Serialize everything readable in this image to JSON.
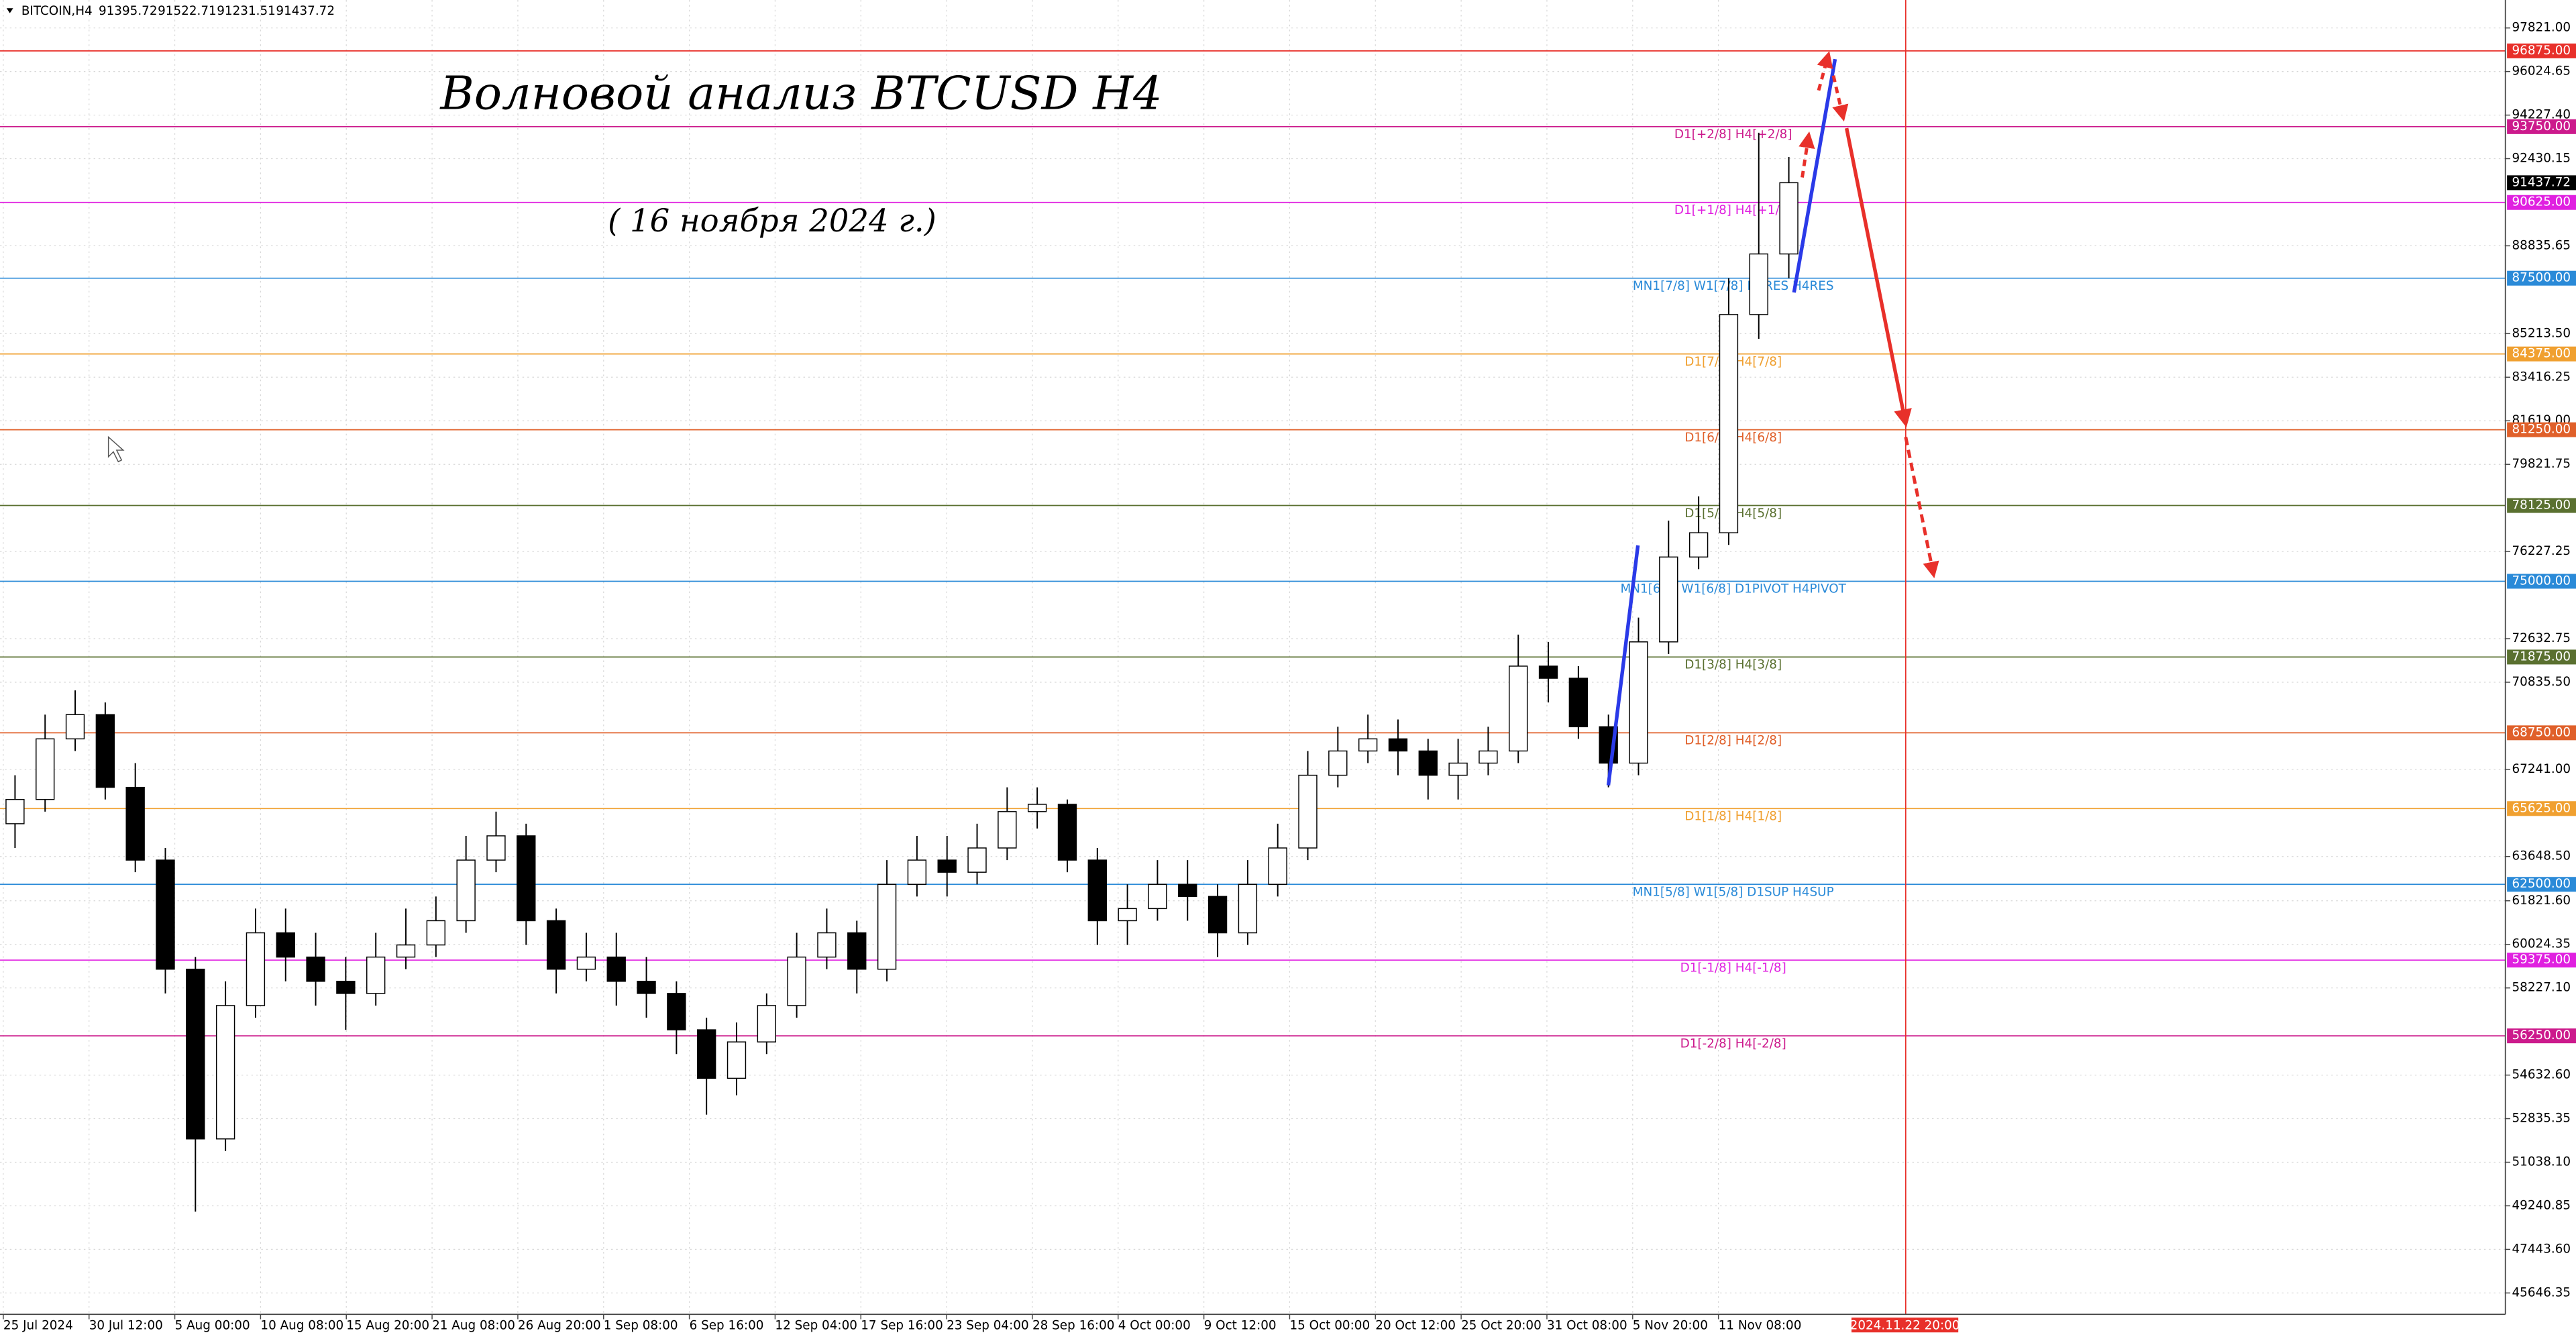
{
  "chart_data": {
    "type": "candlestick",
    "symbol": "BITCOIN,H4",
    "ohlc": [
      91395.72,
      91522.71,
      91231.51,
      91437.72
    ],
    "title": "Волновой анализ BTCUSD H4",
    "subtitle": "( 16 ноября 2024 г.)",
    "open": [
      65000,
      66000,
      68500,
      69500,
      66500,
      63500,
      59000,
      52000,
      57500,
      60500,
      59500,
      58500,
      58000,
      59500,
      60000,
      61000,
      63500,
      64500,
      61000,
      59000,
      59500,
      58500,
      58000,
      56500,
      54500,
      56000,
      57500,
      59500,
      60500,
      59000,
      62500,
      63500,
      63000,
      64000,
      65500,
      65800,
      63500,
      61000,
      61500,
      62500,
      62000,
      60500,
      62500,
      64000,
      67000,
      68000,
      68500,
      68000,
      67000,
      67500,
      68000,
      71500,
      71000,
      69000,
      67500,
      72500,
      76000,
      77000,
      86000,
      88500
    ],
    "high": [
      67000,
      69500,
      70500,
      70000,
      67500,
      64000,
      59500,
      58500,
      61500,
      61500,
      60500,
      59500,
      60500,
      61500,
      62000,
      64500,
      65500,
      65000,
      61500,
      60500,
      60500,
      59500,
      58500,
      57000,
      56800,
      58000,
      60500,
      61500,
      61000,
      63500,
      64500,
      64500,
      65000,
      66500,
      66500,
      66000,
      64000,
      62500,
      63500,
      63500,
      62500,
      63500,
      65000,
      68000,
      69000,
      69500,
      69300,
      68500,
      68500,
      69000,
      72800,
      72500,
      71500,
      69500,
      73500,
      77500,
      78500,
      87500,
      93500,
      92500
    ],
    "low": [
      64000,
      65500,
      68000,
      66000,
      63000,
      58000,
      49000,
      51500,
      57000,
      58500,
      57500,
      56500,
      57500,
      59000,
      59500,
      60500,
      63000,
      60000,
      58000,
      58500,
      57500,
      57000,
      55500,
      53000,
      53800,
      55500,
      57000,
      59000,
      58000,
      58500,
      62000,
      62000,
      62500,
      63500,
      64800,
      63000,
      60000,
      60000,
      61000,
      61000,
      59500,
      60000,
      62000,
      63500,
      66500,
      67500,
      67000,
      66000,
      66000,
      67000,
      67500,
      70000,
      68500,
      66500,
      67000,
      72000,
      75500,
      76500,
      85000,
      87500
    ],
    "close": [
      66000,
      68500,
      69500,
      66500,
      63500,
      59000,
      52000,
      57500,
      60500,
      59500,
      58500,
      58000,
      59500,
      60000,
      61000,
      63500,
      64500,
      61000,
      59000,
      59500,
      58500,
      58000,
      56500,
      54500,
      56000,
      57500,
      59500,
      60500,
      59000,
      62500,
      63500,
      63000,
      64000,
      65500,
      65800,
      63500,
      61000,
      61500,
      62500,
      62000,
      60500,
      62500,
      64000,
      67000,
      68000,
      68500,
      68000,
      67000,
      67500,
      68000,
      71500,
      71000,
      69000,
      67500,
      72500,
      76000,
      77000,
      86000,
      88500,
      91437.72
    ],
    "x_labels": [
      "25 Jul 2024",
      "30 Jul 12:00",
      "5 Aug 00:00",
      "10 Aug 08:00",
      "15 Aug 20:00",
      "21 Aug 08:00",
      "26 Aug 20:00",
      "1 Sep 08:00",
      "6 Sep 16:00",
      "12 Sep 04:00",
      "17 Sep 16:00",
      "23 Sep 04:00",
      "28 Sep 16:00",
      "4 Oct 00:00",
      "9 Oct 12:00",
      "15 Oct 00:00",
      "20 Oct 12:00",
      "25 Oct 20:00",
      "31 Oct 08:00",
      "5 Nov 20:00",
      "11 Nov 08:00"
    ],
    "marker_label": "2024.11.22 20:00",
    "ylim": [
      44765,
      98973
    ],
    "yticks": [
      {
        "value": 97821.0,
        "label": "97821.00"
      },
      {
        "value": 96024.65,
        "label": "96024.65"
      },
      {
        "value": 94227.4,
        "label": "94227.40"
      },
      {
        "value": 92430.15,
        "label": "92430.15"
      },
      {
        "value": 88835.65,
        "label": "88835.65"
      },
      {
        "value": 85213.5,
        "label": "85213.50"
      },
      {
        "value": 83416.25,
        "label": "83416.25"
      },
      {
        "value": 81619.0,
        "label": "81619.00"
      },
      {
        "value": 79821.75,
        "label": "79821.75"
      },
      {
        "value": 76227.25,
        "label": "76227.25"
      },
      {
        "value": 72632.75,
        "label": "72632.75"
      },
      {
        "value": 70835.5,
        "label": "70835.50"
      },
      {
        "value": 67241.0,
        "label": "67241.00"
      },
      {
        "value": 63648.5,
        "label": "63648.50"
      },
      {
        "value": 61821.6,
        "label": "61821.60"
      },
      {
        "value": 60024.35,
        "label": "60024.35"
      },
      {
        "value": 58227.1,
        "label": "58227.10"
      },
      {
        "value": 54632.6,
        "label": "54632.60"
      },
      {
        "value": 52835.35,
        "label": "52835.35"
      },
      {
        "value": 51038.1,
        "label": "51038.10"
      },
      {
        "value": 49240.85,
        "label": "49240.85"
      },
      {
        "value": 47443.6,
        "label": "47443.60"
      },
      {
        "value": 45646.35,
        "label": "45646.35"
      }
    ],
    "grid": true,
    "levels": [
      {
        "value": 96875,
        "label": "96875.00",
        "color": "#e8302a"
      },
      {
        "value": 93750,
        "label": "93750.00",
        "text": "D1[+2/8] H4[+2/8]",
        "color": "#cc1a8c"
      },
      {
        "value": 90625,
        "label": "90625.00",
        "text": "D1[+1/8] H4[+1/8]",
        "color": "#e020e0"
      },
      {
        "value": 87500,
        "label": "87500.00",
        "text": "MN1[7/8] W1[7/8] D1RES H4RES",
        "color": "#2a8ad8"
      },
      {
        "value": 84375,
        "label": "84375.00",
        "text": "D1[7/8] H4[7/8]",
        "color": "#f0a030"
      },
      {
        "value": 81250,
        "label": "81250.00",
        "text": "D1[6/8] H4[6/8]",
        "color": "#e0602a"
      },
      {
        "value": 78125,
        "label": "78125.00",
        "text": "D1[5/8] H4[5/8]",
        "color": "#5a7030"
      },
      {
        "value": 75000,
        "label": "75000.00",
        "text": "MN1[6/8] W1[6/8] D1PIVOT H4PIVOT",
        "color": "#2a8ad8"
      },
      {
        "value": 71875,
        "label": "71875.00",
        "text": "D1[3/8] H4[3/8]",
        "color": "#5a7030"
      },
      {
        "value": 68750,
        "label": "68750.00",
        "text": "D1[2/8] H4[2/8]",
        "color": "#e0602a"
      },
      {
        "value": 65625,
        "label": "65625.00",
        "text": "D1[1/8] H4[1/8]",
        "color": "#f0a030"
      },
      {
        "value": 62500,
        "label": "62500.00",
        "text": "MN1[5/8] W1[5/8] D1SUP H4SUP",
        "color": "#2a8ad8"
      },
      {
        "value": 59375,
        "label": "59375.00",
        "text": "D1[-1/8] H4[-1/8]",
        "color": "#e020e0"
      },
      {
        "value": 56250,
        "label": "56250.00",
        "text": "D1[-2/8] H4[-2/8]",
        "color": "#cc1a8c"
      }
    ]
  }
}
